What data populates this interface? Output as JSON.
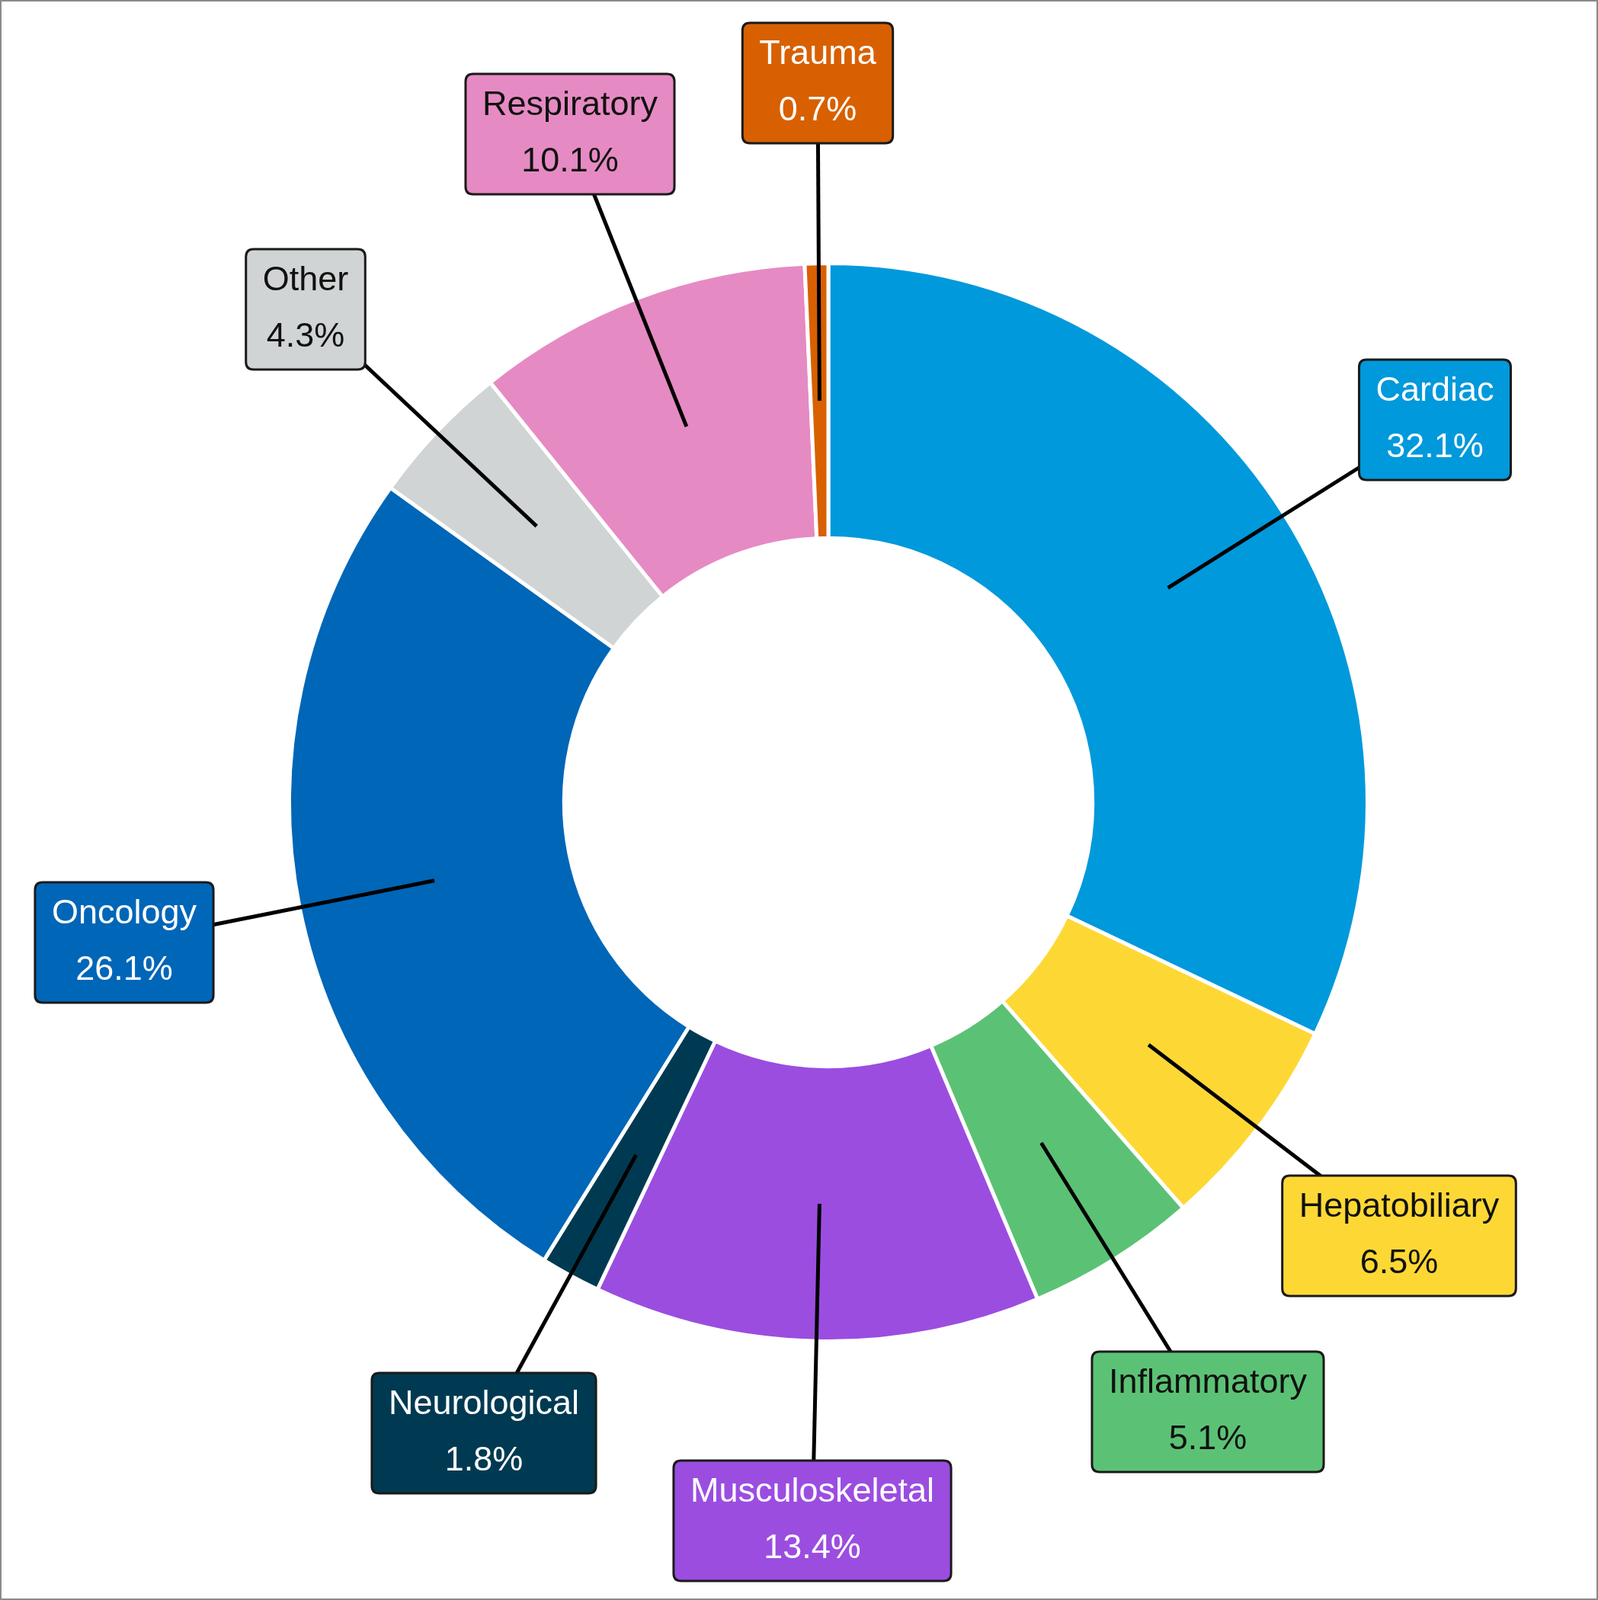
{
  "chart_data": {
    "type": "doughnut",
    "categories": [
      "Cardiac",
      "Hepatobiliary",
      "Inflammatory",
      "Musculoskeletal",
      "Neurological",
      "Oncology",
      "Other",
      "Respiratory",
      "Trauma"
    ],
    "values": [
      32.1,
      6.5,
      5.1,
      13.4,
      1.8,
      26.1,
      4.3,
      10.1,
      0.7
    ],
    "value_labels": [
      "32.1%",
      "6.5%",
      "5.1%",
      "13.4%",
      "1.8%",
      "26.1%",
      "4.3%",
      "10.1%",
      "0.7%"
    ],
    "colors": [
      "#0099db",
      "#fdd835",
      "#5bc275",
      "#9b4de0",
      "#003a52",
      "#0066b8",
      "#d0d4d4",
      "#e68ac3",
      "#d86000"
    ],
    "data_labels": true
  }
}
